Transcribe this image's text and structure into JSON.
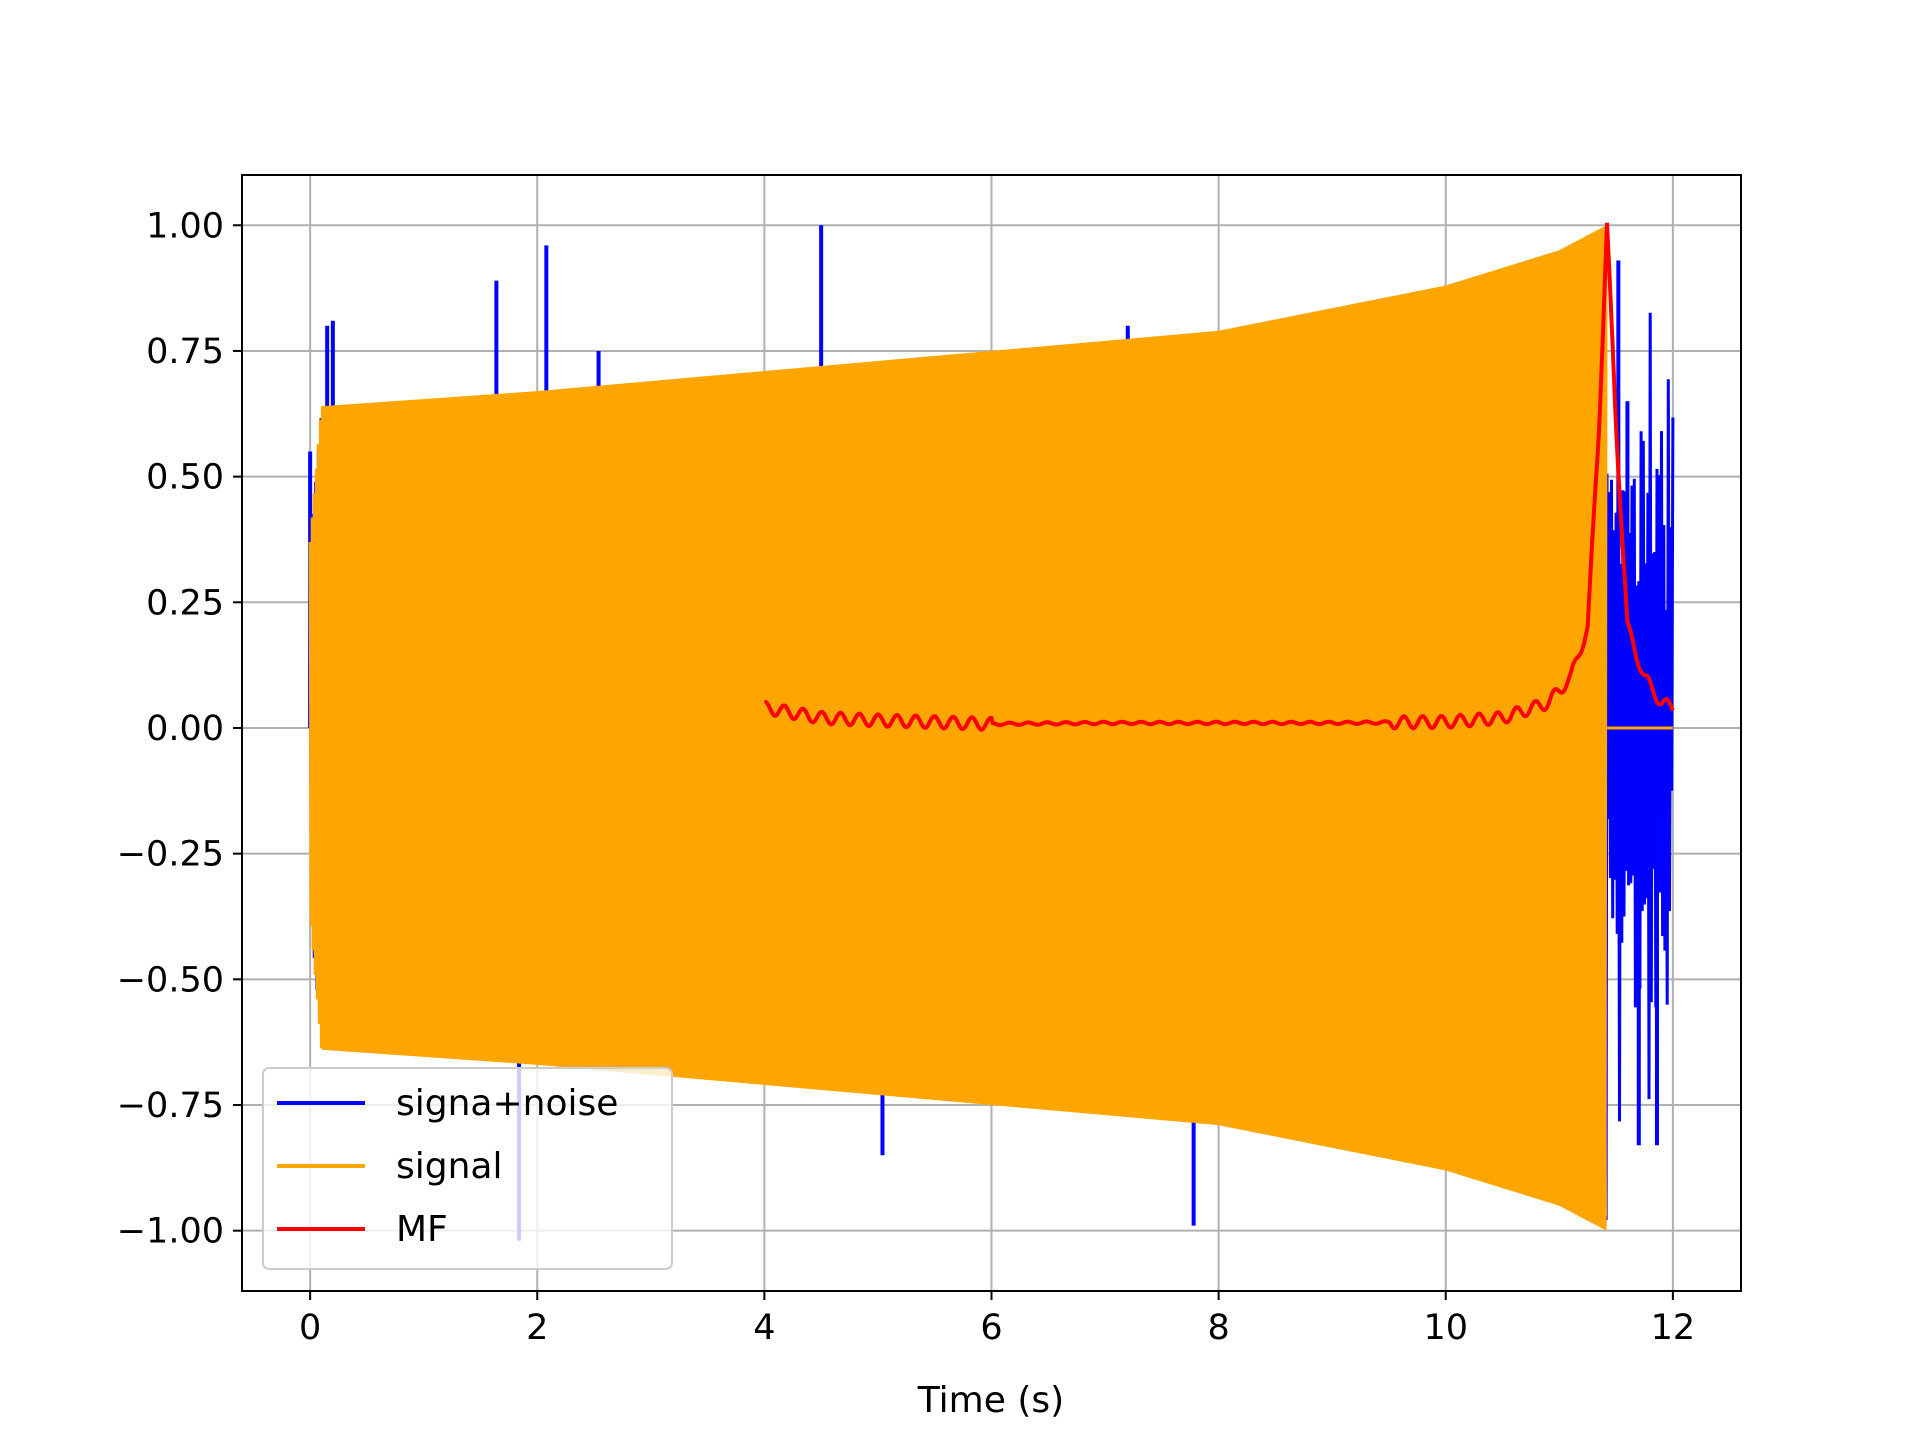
{
  "chart_data": {
    "type": "line",
    "title": "",
    "xlabel": "Time (s)",
    "ylabel": "",
    "xlim": [
      -0.6,
      12.6
    ],
    "ylim": [
      -1.12,
      1.1
    ],
    "x_ticks": [
      0,
      2,
      4,
      6,
      8,
      10,
      12
    ],
    "x_tick_labels": [
      "0",
      "2",
      "4",
      "6",
      "8",
      "10",
      "12"
    ],
    "y_ticks": [
      1.0,
      0.75,
      0.5,
      0.25,
      0.0,
      -0.25,
      -0.5,
      -0.75,
      -1.0
    ],
    "y_tick_labels": [
      "1.00",
      "0.75",
      "0.50",
      "0.25",
      "0.00",
      "−0.25",
      "−0.50",
      "−0.75",
      "−1.00"
    ],
    "grid": true,
    "legend_position": "lower-left",
    "series": [
      {
        "name": "signa+noise",
        "color": "#0000ff",
        "description_points": {
          "x": [
            0,
            0.15,
            0.2,
            1.64,
            1.84,
            2.08,
            2.54,
            4.5,
            5.04,
            7.2,
            7.78,
            11.52,
            11.6,
            11.7,
            11.86,
            11.98
          ],
          "y": [
            0.55,
            0.8,
            0.81,
            0.89,
            -1.02,
            0.96,
            0.75,
            1.0,
            -0.85,
            0.8,
            -0.99,
            0.93,
            0.65,
            -0.83,
            -0.83,
            0.4
          ]
        }
      },
      {
        "name": "signal",
        "color": "#ffa500",
        "envelope": {
          "x": [
            0.0,
            0.1,
            2.0,
            4.0,
            6.0,
            8.0,
            10.0,
            11.0,
            11.42
          ],
          "amplitude": [
            0.37,
            0.64,
            0.67,
            0.71,
            0.75,
            0.79,
            0.88,
            0.95,
            1.0
          ]
        },
        "zero_after_x": 11.42,
        "end_x": 12.0
      },
      {
        "name": "MF",
        "color": "#ff0000",
        "x": [
          4.0,
          4.5,
          5.0,
          6.0,
          7.0,
          8.0,
          9.0,
          10.0,
          10.5,
          10.9,
          11.1,
          11.25,
          11.35,
          11.42,
          11.5,
          11.6,
          11.75,
          11.9,
          12.0
        ],
        "y": [
          0.04,
          0.02,
          0.015,
          0.008,
          0.01,
          0.01,
          0.01,
          0.012,
          0.02,
          0.05,
          0.1,
          0.2,
          0.6,
          1.0,
          0.6,
          0.2,
          0.1,
          0.05,
          0.04
        ]
      }
    ]
  }
}
